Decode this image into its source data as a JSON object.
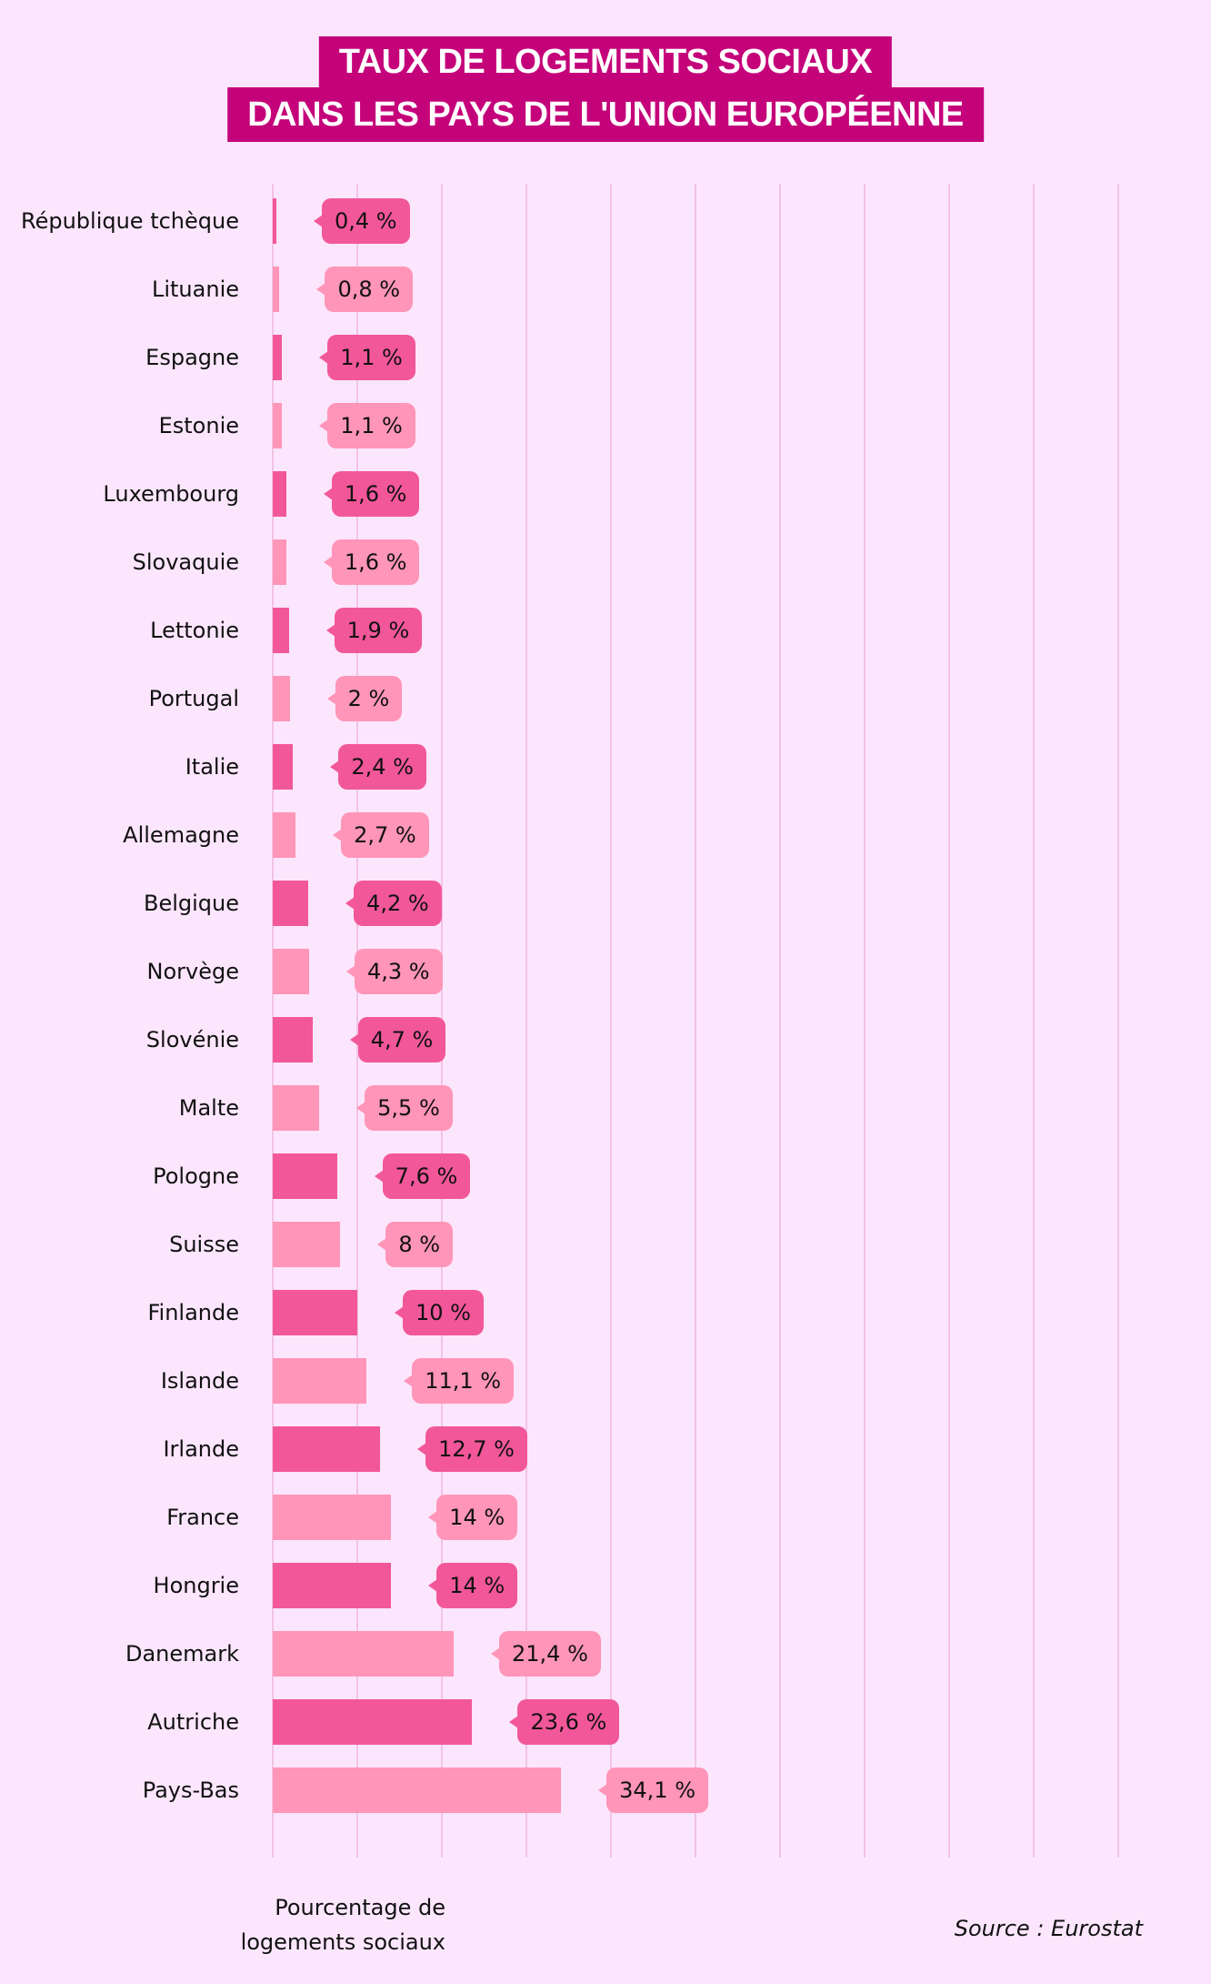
{
  "chart_data": {
    "type": "bar",
    "orientation": "horizontal",
    "title": [
      "TAUX DE LOGEMENTS SOCIAUX",
      "DANS LES PAYS DE L'UNION EUROPÉENNE"
    ],
    "xlabel": "Pourcentage de logements sociaux",
    "xlim": [
      0,
      100
    ],
    "grid": true,
    "grid_step": 10,
    "source": "Source : Eurostat",
    "colors": {
      "dark": "#f2579a",
      "light": "#ff95b8",
      "title_bg": "#c4037a",
      "background": "#fce6fd",
      "grid": "#f1c3e6"
    },
    "categories": [
      "République tchèque",
      "Lituanie",
      "Espagne",
      "Estonie",
      "Luxembourg",
      "Slovaquie",
      "Lettonie",
      "Portugal",
      "Italie",
      "Allemagne",
      "Belgique",
      "Norvège",
      "Slovénie",
      "Malte",
      "Pologne",
      "Suisse",
      "Finlande",
      "Islande",
      "Irlande",
      "France",
      "Hongrie",
      "Danemark",
      "Autriche",
      "Pays-Bas"
    ],
    "values": [
      0.4,
      0.8,
      1.1,
      1.1,
      1.6,
      1.6,
      1.9,
      2,
      2.4,
      2.7,
      4.2,
      4.3,
      4.7,
      5.5,
      7.6,
      8,
      10,
      11.1,
      12.7,
      14,
      14,
      21.4,
      23.6,
      34.1
    ],
    "labels": [
      "0,4 %",
      "0,8 %",
      "1,1 %",
      "1,1 %",
      "1,6 %",
      "1,6 %",
      "1,9 %",
      "2 %",
      "2,4 %",
      "2,7 %",
      "4,2 %",
      "4,3 %",
      "4,7 %",
      "5,5 %",
      "7,6 %",
      "8 %",
      "10 %",
      "11,1 %",
      "12,7 %",
      "14 %",
      "14 %",
      "21,4 %",
      "23,6 %",
      "34,1 %"
    ]
  },
  "axis_label_lines": [
    "Pourcentage de",
    "logements sociaux"
  ]
}
